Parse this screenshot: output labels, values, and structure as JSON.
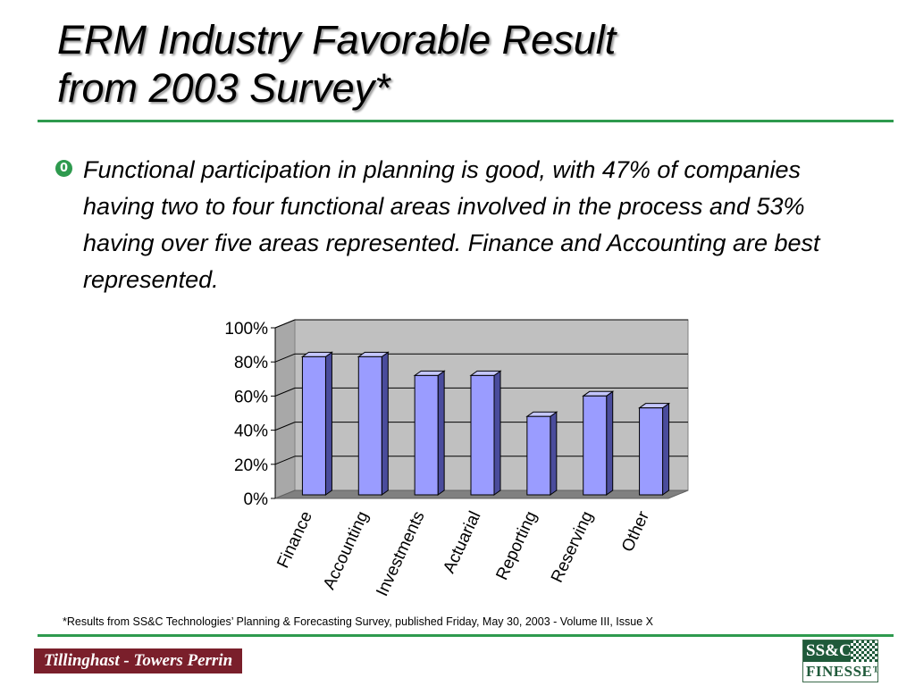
{
  "slide": {
    "title_line1": "ERM Industry Favorable Result",
    "title_line2": "from 2003 Survey*",
    "bullet_icon": "0",
    "bullet_text": "Functional participation in planning is good, with 47% of companies having two to four functional areas involved in the process and 53% having over five areas represented. Finance and Accounting are best represented.",
    "footnote": "*Results from SS&C Technologies’ Planning & Forecasting Survey, published Friday, May 30, 2003 - Volume III, Issue X",
    "logo_left": "Tillinghast - Towers Perrin",
    "logo_right_top": "SS&C",
    "logo_right_bottom": "FINESSE™"
  },
  "colors": {
    "accent_green": "#2e9a4e",
    "bar_front": "#9a9cff",
    "bar_side": "#4a4c9c",
    "bar_top": "#c4c6ff",
    "plot_back": "#c0c0c0",
    "plot_floor": "#808080",
    "logo_left_bg": "#7a1f2b",
    "logo_right_bg": "#1f5a3a"
  },
  "chart_data": {
    "type": "bar",
    "categories": [
      "Finance",
      "Accounting",
      "Investments",
      "Actuarial",
      "Reporting",
      "Reserving",
      "Other"
    ],
    "values": [
      82,
      82,
      71,
      71,
      47,
      59,
      52
    ],
    "yticks": [
      "0%",
      "20%",
      "40%",
      "60%",
      "80%",
      "100%"
    ],
    "ylim": [
      0,
      100
    ],
    "grid": true,
    "three_d": true
  }
}
